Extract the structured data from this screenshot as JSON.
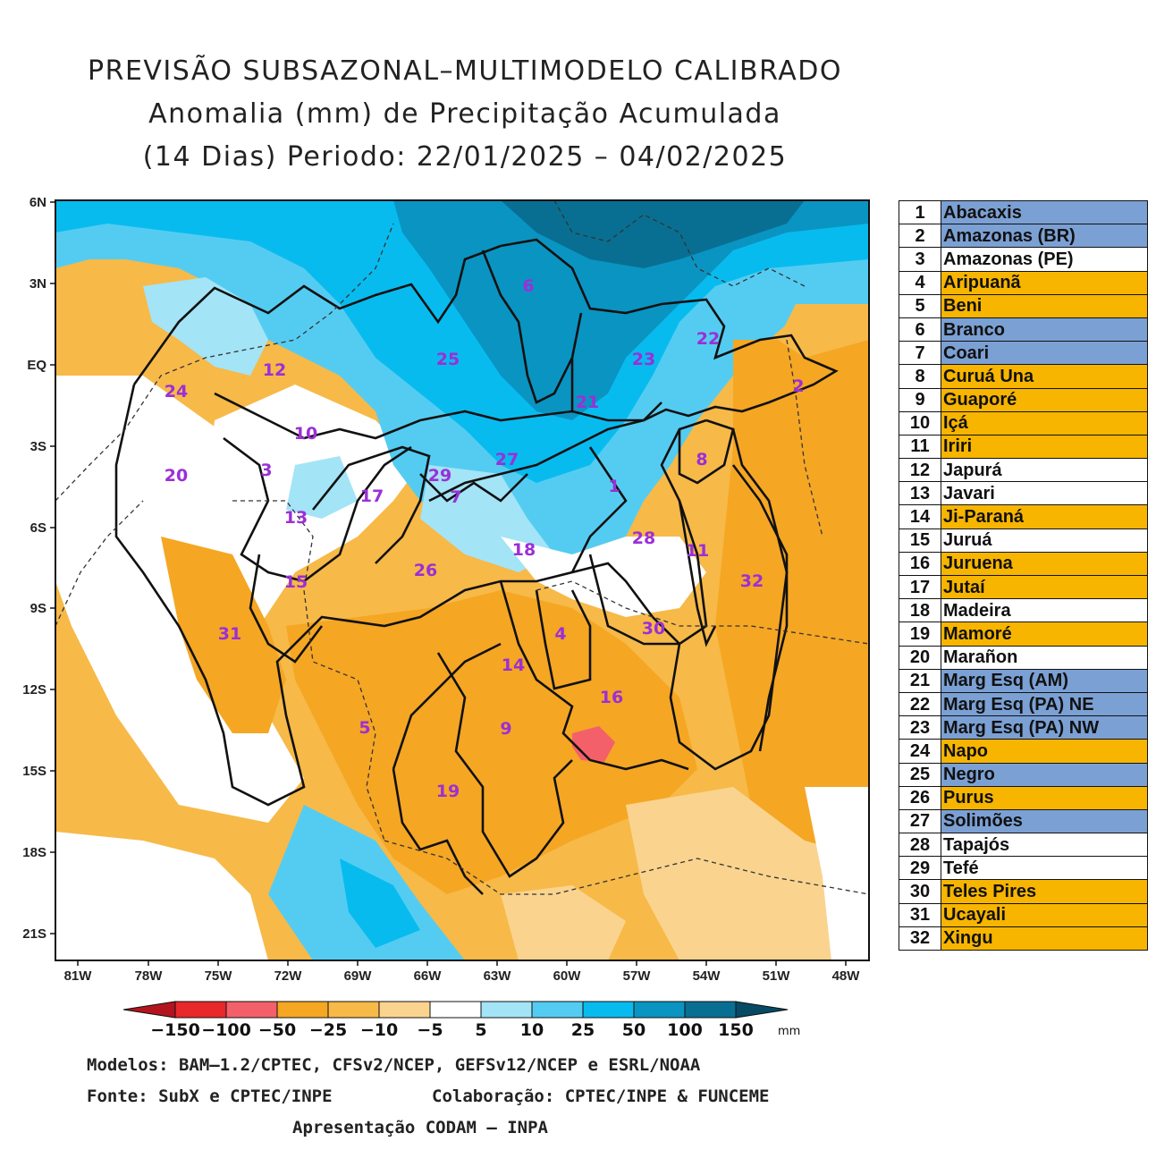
{
  "title": {
    "line1": "PREVISÃO SUBSAZONAL–MULTIMODELO CALIBRADO",
    "line2": "Anomalia (mm) de Precipitação Acumulada",
    "line3": "(14 Dias) Periodo: 22/01/2025 – 04/02/2025"
  },
  "axes": {
    "lat_labels": [
      "6N",
      "3N",
      "EQ",
      "3S",
      "6S",
      "9S",
      "12S",
      "15S",
      "18S",
      "21S"
    ],
    "lon_labels": [
      "81W",
      "78W",
      "75W",
      "72W",
      "69W",
      "66W",
      "63W",
      "60W",
      "57W",
      "54W",
      "51W",
      "48W"
    ]
  },
  "colorbar": {
    "labels": [
      "−150",
      "−100",
      "−50",
      "−25",
      "−10",
      "−5",
      "5",
      "10",
      "25",
      "50",
      "100",
      "150"
    ],
    "unit": "mm",
    "colors": {
      "lt_neg150": "#b4141e",
      "neg150_neg100": "#e8282a",
      "neg100_neg50": "#f4606a",
      "neg50_neg25": "#f5a623",
      "neg25_neg10": "#f7b948",
      "neg10_neg5": "#fad48f",
      "neg5_5": "#ffffff",
      "5_10": "#a3e4f7",
      "10_25": "#54ccf2",
      "25_50": "#08bbef",
      "50_100": "#0a94c2",
      "100_150": "#086f93",
      "gt150": "#064a66"
    }
  },
  "basin_labels": [
    {
      "id": "1"
    },
    {
      "id": "2"
    },
    {
      "id": "3"
    },
    {
      "id": "4"
    },
    {
      "id": "5"
    },
    {
      "id": "6"
    },
    {
      "id": "7"
    },
    {
      "id": "8"
    },
    {
      "id": "9"
    },
    {
      "id": "10"
    },
    {
      "id": "11"
    },
    {
      "id": "12"
    },
    {
      "id": "13"
    },
    {
      "id": "14"
    },
    {
      "id": "15"
    },
    {
      "id": "16"
    },
    {
      "id": "17"
    },
    {
      "id": "18"
    },
    {
      "id": "19"
    },
    {
      "id": "20"
    },
    {
      "id": "21"
    },
    {
      "id": "22"
    },
    {
      "id": "23"
    },
    {
      "id": "24"
    },
    {
      "id": "25"
    },
    {
      "id": "26"
    },
    {
      "id": "27"
    },
    {
      "id": "28"
    },
    {
      "id": "29"
    },
    {
      "id": "30"
    },
    {
      "id": "31"
    },
    {
      "id": "32"
    }
  ],
  "legend_colors": {
    "blue": "#7ba0d4",
    "orange": "#f7b500",
    "white": "#ffffff"
  },
  "legend": [
    {
      "num": "1",
      "name": "Abacaxis",
      "status": "blue"
    },
    {
      "num": "2",
      "name": "Amazonas (BR)",
      "status": "blue"
    },
    {
      "num": "3",
      "name": "Amazonas (PE)",
      "status": "white"
    },
    {
      "num": "4",
      "name": "Aripuanã",
      "status": "orange"
    },
    {
      "num": "5",
      "name": "Beni",
      "status": "orange"
    },
    {
      "num": "6",
      "name": "Branco",
      "status": "blue"
    },
    {
      "num": "7",
      "name": "Coari",
      "status": "blue"
    },
    {
      "num": "8",
      "name": "Curuá Una",
      "status": "orange"
    },
    {
      "num": "9",
      "name": "Guaporé",
      "status": "orange"
    },
    {
      "num": "10",
      "name": "Içá",
      "status": "orange"
    },
    {
      "num": "11",
      "name": "Iriri",
      "status": "orange"
    },
    {
      "num": "12",
      "name": "Japurá",
      "status": "white"
    },
    {
      "num": "13",
      "name": "Javari",
      "status": "white"
    },
    {
      "num": "14",
      "name": "Ji-Paraná",
      "status": "orange"
    },
    {
      "num": "15",
      "name": "Juruá",
      "status": "white"
    },
    {
      "num": "16",
      "name": "Juruena",
      "status": "orange"
    },
    {
      "num": "17",
      "name": "Jutaí",
      "status": "orange"
    },
    {
      "num": "18",
      "name": "Madeira",
      "status": "white"
    },
    {
      "num": "19",
      "name": "Mamoré",
      "status": "orange"
    },
    {
      "num": "20",
      "name": "Marañon",
      "status": "white"
    },
    {
      "num": "21",
      "name": "Marg Esq (AM)",
      "status": "blue"
    },
    {
      "num": "22",
      "name": "Marg Esq (PA) NE",
      "status": "blue"
    },
    {
      "num": "23",
      "name": "Marg Esq (PA) NW",
      "status": "blue"
    },
    {
      "num": "24",
      "name": "Napo",
      "status": "orange"
    },
    {
      "num": "25",
      "name": "Negro",
      "status": "blue"
    },
    {
      "num": "26",
      "name": "Purus",
      "status": "orange"
    },
    {
      "num": "27",
      "name": "Solimões",
      "status": "blue"
    },
    {
      "num": "28",
      "name": "Tapajós",
      "status": "white"
    },
    {
      "num": "29",
      "name": "Tefé",
      "status": "white"
    },
    {
      "num": "30",
      "name": "Teles Pires",
      "status": "orange"
    },
    {
      "num": "31",
      "name": "Ucayali",
      "status": "orange"
    },
    {
      "num": "32",
      "name": "Xingu",
      "status": "orange"
    }
  ],
  "footer": {
    "models": "Modelos: BAM–1.2/CPTEC, CFSv2/NCEP, GEFSv12/NCEP e ESRL/NOAA",
    "source": "Fonte: SubX e CPTEC/INPE",
    "collab": "Colaboração: CPTEC/INPE & FUNCEME",
    "presentation": "Apresentação CODAM – INPA"
  }
}
